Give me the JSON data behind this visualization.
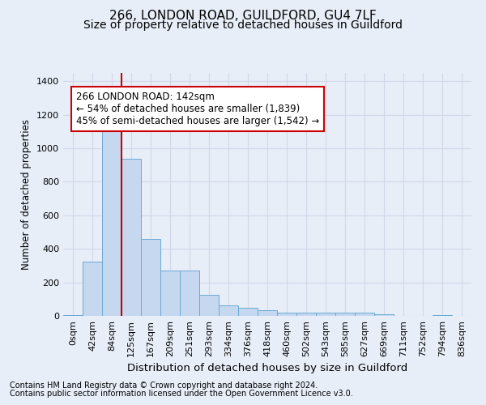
{
  "title1": "266, LONDON ROAD, GUILDFORD, GU4 7LF",
  "title2": "Size of property relative to detached houses in Guildford",
  "xlabel": "Distribution of detached houses by size in Guildford",
  "ylabel": "Number of detached properties",
  "categories": [
    "0sqm",
    "42sqm",
    "84sqm",
    "125sqm",
    "167sqm",
    "209sqm",
    "251sqm",
    "293sqm",
    "334sqm",
    "376sqm",
    "418sqm",
    "460sqm",
    "502sqm",
    "543sqm",
    "585sqm",
    "627sqm",
    "669sqm",
    "711sqm",
    "752sqm",
    "794sqm",
    "836sqm"
  ],
  "values": [
    5,
    325,
    1110,
    940,
    460,
    270,
    270,
    125,
    65,
    50,
    35,
    20,
    20,
    20,
    20,
    20,
    10,
    0,
    0,
    5,
    0
  ],
  "bar_color": "#c5d8f0",
  "bar_edge_color": "#6aaad4",
  "vline_color": "#cc0000",
  "annotation_text": "266 LONDON ROAD: 142sqm\n← 54% of detached houses are smaller (1,839)\n45% of semi-detached houses are larger (1,542) →",
  "annotation_box_facecolor": "white",
  "annotation_box_edgecolor": "#cc0000",
  "ylim": [
    0,
    1450
  ],
  "yticks": [
    0,
    200,
    400,
    600,
    800,
    1000,
    1200,
    1400
  ],
  "footer1": "Contains HM Land Registry data © Crown copyright and database right 2024.",
  "footer2": "Contains public sector information licensed under the Open Government Licence v3.0.",
  "background_color": "#e8eef8",
  "grid_color": "#d0d8e8",
  "title1_fontsize": 11,
  "title2_fontsize": 10,
  "xlabel_fontsize": 9.5,
  "ylabel_fontsize": 8.5,
  "tick_fontsize": 8,
  "annotation_fontsize": 8.5,
  "footer_fontsize": 7
}
